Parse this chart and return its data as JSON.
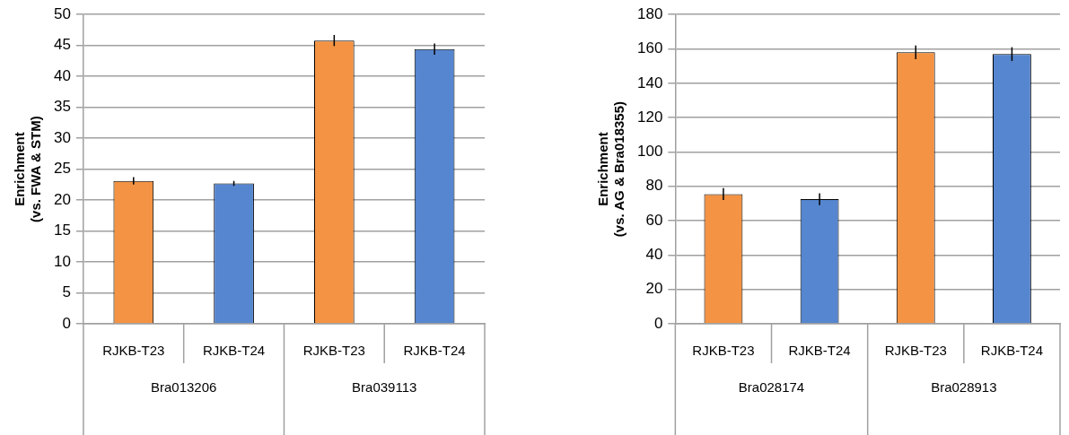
{
  "chart_data": [
    {
      "type": "bar",
      "ylabel": "Enrichment\n(vs. FWA & STM)",
      "categories": [
        "RJKB-T23",
        "RJKB-T24",
        "RJKB-T23",
        "RJKB-T24"
      ],
      "annotations": [
        "Bra013206",
        "Bra039113"
      ],
      "values": [
        23.1,
        22.7,
        45.8,
        44.4
      ],
      "errors": [
        0.6,
        0.4,
        0.9,
        0.9
      ],
      "colors": [
        "#f39343",
        "#5686cf",
        "#f39343",
        "#5686cf"
      ],
      "ylim": [
        0,
        50
      ],
      "yticks": [
        0,
        5,
        10,
        15,
        20,
        25,
        30,
        35,
        40,
        45,
        50
      ],
      "grid": "y",
      "legend": false
    },
    {
      "type": "bar",
      "ylabel": "Enrichment\n(vs. AG & Bra018355)",
      "categories": [
        "RJKB-T23",
        "RJKB-T24",
        "RJKB-T23",
        "RJKB-T24"
      ],
      "annotations": [
        "Bra028174",
        "Bra028913"
      ],
      "values": [
        75.5,
        72.5,
        158,
        157
      ],
      "errors": [
        3.5,
        3.5,
        4,
        4
      ],
      "colors": [
        "#f39343",
        "#5686cf",
        "#f39343",
        "#5686cf"
      ],
      "ylim": [
        0,
        180
      ],
      "yticks": [
        0,
        20,
        40,
        60,
        80,
        100,
        120,
        140,
        160,
        180
      ],
      "grid": "y",
      "legend": false
    }
  ]
}
